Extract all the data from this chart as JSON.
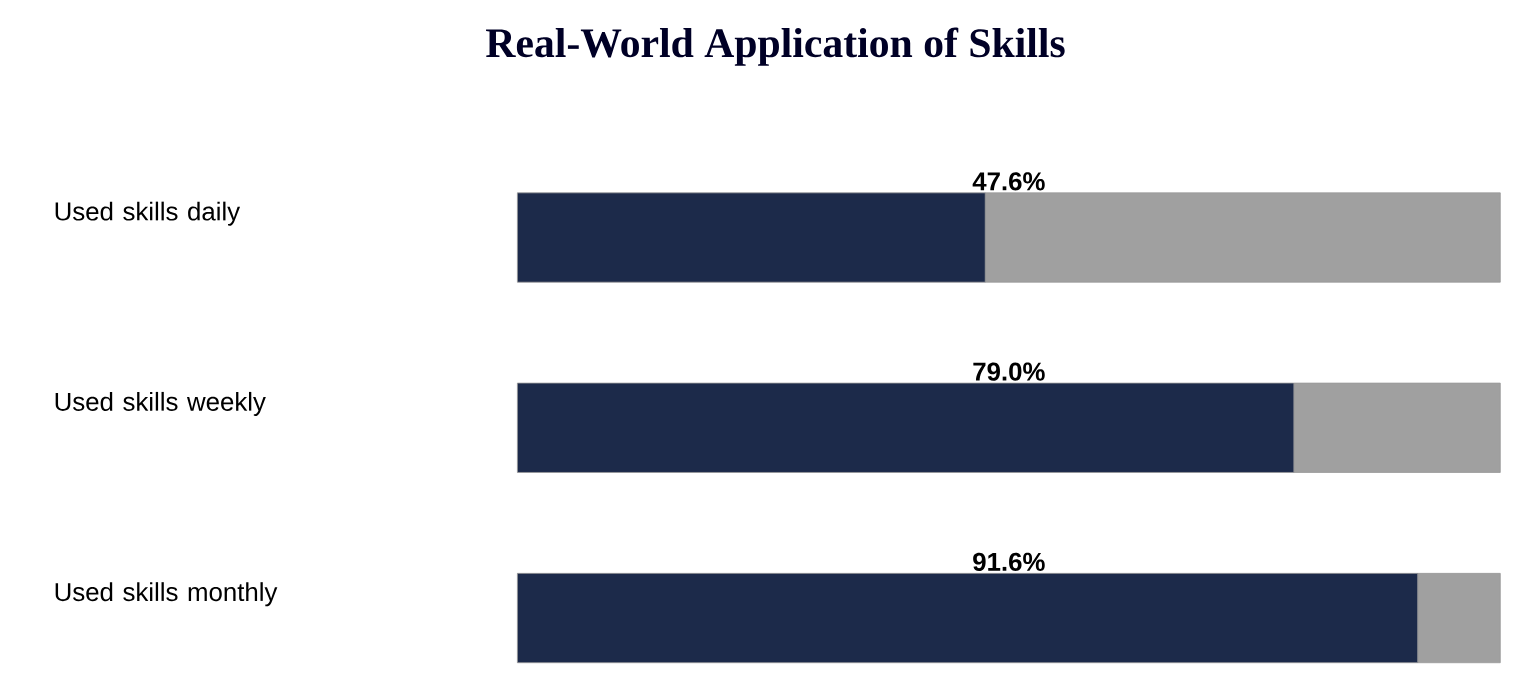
{
  "chart_data": {
    "type": "bar",
    "orientation": "horizontal",
    "stacked": true,
    "title": "Real-World Application of Skills",
    "categories": [
      "Used skills daily",
      "Used skills weekly",
      "Used skills monthly"
    ],
    "series": [
      {
        "color": "#1c2a4a",
        "values": [
          47.6,
          79.0,
          91.6
        ],
        "value_labels": [
          "47.6%",
          "79.0%",
          "91.6%"
        ]
      },
      {
        "color": "#a0a0a0",
        "values": [
          52.4,
          21.0,
          8.4
        ]
      }
    ],
    "xlim": [
      0,
      100
    ],
    "tick_labels": "y"
  }
}
